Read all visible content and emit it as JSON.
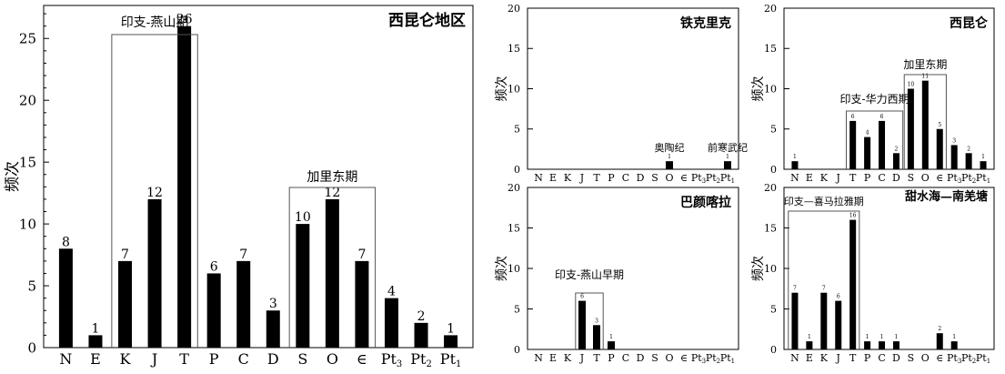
{
  "chart_data": [
    {
      "type": "bar",
      "title": "西昆仑地区",
      "ylabel": "频次",
      "xlabel": "",
      "ylim": [
        0,
        28
      ],
      "yticks": [
        0,
        5,
        10,
        15,
        20,
        25
      ],
      "grid": false,
      "categories": [
        "N",
        "E",
        "K",
        "J",
        "T",
        "P",
        "C",
        "D",
        "S",
        "O",
        "∈",
        "Pt3",
        "Pt2",
        "Pt1"
      ],
      "values": [
        8,
        1,
        7,
        12,
        26,
        6,
        7,
        3,
        10,
        12,
        7,
        4,
        2,
        1
      ],
      "annotations": [
        {
          "text": "印支-燕山期",
          "from": "K",
          "to": "T"
        },
        {
          "text": "加里东期",
          "from": "S",
          "to": "∈"
        }
      ]
    },
    {
      "type": "bar",
      "title": "铁克里克",
      "ylabel": "频次",
      "xlabel": "",
      "ylim": [
        0,
        20
      ],
      "yticks": [
        0,
        5,
        10,
        15,
        20
      ],
      "grid": false,
      "categories": [
        "N",
        "E",
        "K",
        "J",
        "T",
        "P",
        "C",
        "D",
        "S",
        "O",
        "∈",
        "Pt3",
        "Pt2",
        "Pt1"
      ],
      "values": [
        0,
        0,
        0,
        0,
        0,
        0,
        0,
        0,
        0,
        1,
        0,
        0,
        0,
        1
      ],
      "annotations": [
        {
          "text": "奥陶纪",
          "at": "O"
        },
        {
          "text": "前寒武纪",
          "at": "Pt1"
        }
      ]
    },
    {
      "type": "bar",
      "title": "西昆仑",
      "ylabel": "频次",
      "xlabel": "",
      "ylim": [
        0,
        20
      ],
      "yticks": [
        0,
        5,
        10,
        15,
        20
      ],
      "grid": false,
      "categories": [
        "N",
        "E",
        "K",
        "J",
        "T",
        "P",
        "C",
        "D",
        "S",
        "O",
        "∈",
        "Pt3",
        "Pt2",
        "Pt1"
      ],
      "values": [
        1,
        0,
        0,
        0,
        6,
        4,
        6,
        2,
        10,
        11,
        5,
        3,
        2,
        1
      ],
      "annotations": [
        {
          "text": "印支-华力西期",
          "from": "T",
          "to": "D"
        },
        {
          "text": "加里东期",
          "from": "S",
          "to": "∈"
        }
      ]
    },
    {
      "type": "bar",
      "title": "巴颜喀拉",
      "ylabel": "频次",
      "xlabel": "",
      "ylim": [
        0,
        20
      ],
      "yticks": [
        0,
        5,
        10,
        15,
        20
      ],
      "grid": false,
      "categories": [
        "N",
        "E",
        "K",
        "J",
        "T",
        "P",
        "C",
        "D",
        "S",
        "O",
        "∈",
        "Pt3",
        "Pt2",
        "Pt1"
      ],
      "values": [
        0,
        0,
        0,
        6,
        3,
        1,
        0,
        0,
        0,
        0,
        0,
        0,
        0,
        0
      ],
      "annotations": [
        {
          "text": "印支-燕山早期",
          "from": "J",
          "to": "T"
        }
      ]
    },
    {
      "type": "bar",
      "title": "甜水海—南羌塘",
      "ylabel": "频次",
      "xlabel": "",
      "ylim": [
        0,
        20
      ],
      "yticks": [
        0,
        5,
        10,
        15,
        20
      ],
      "grid": false,
      "categories": [
        "N",
        "E",
        "K",
        "J",
        "T",
        "P",
        "C",
        "D",
        "S",
        "O",
        "∈",
        "Pt3",
        "Pt2",
        "Pt1"
      ],
      "values": [
        7,
        1,
        7,
        6,
        16,
        1,
        1,
        1,
        0,
        0,
        2,
        1,
        0,
        0
      ],
      "annotations": [
        {
          "text": "印支—喜马拉雅期",
          "from": "N",
          "to": "T"
        }
      ]
    }
  ]
}
